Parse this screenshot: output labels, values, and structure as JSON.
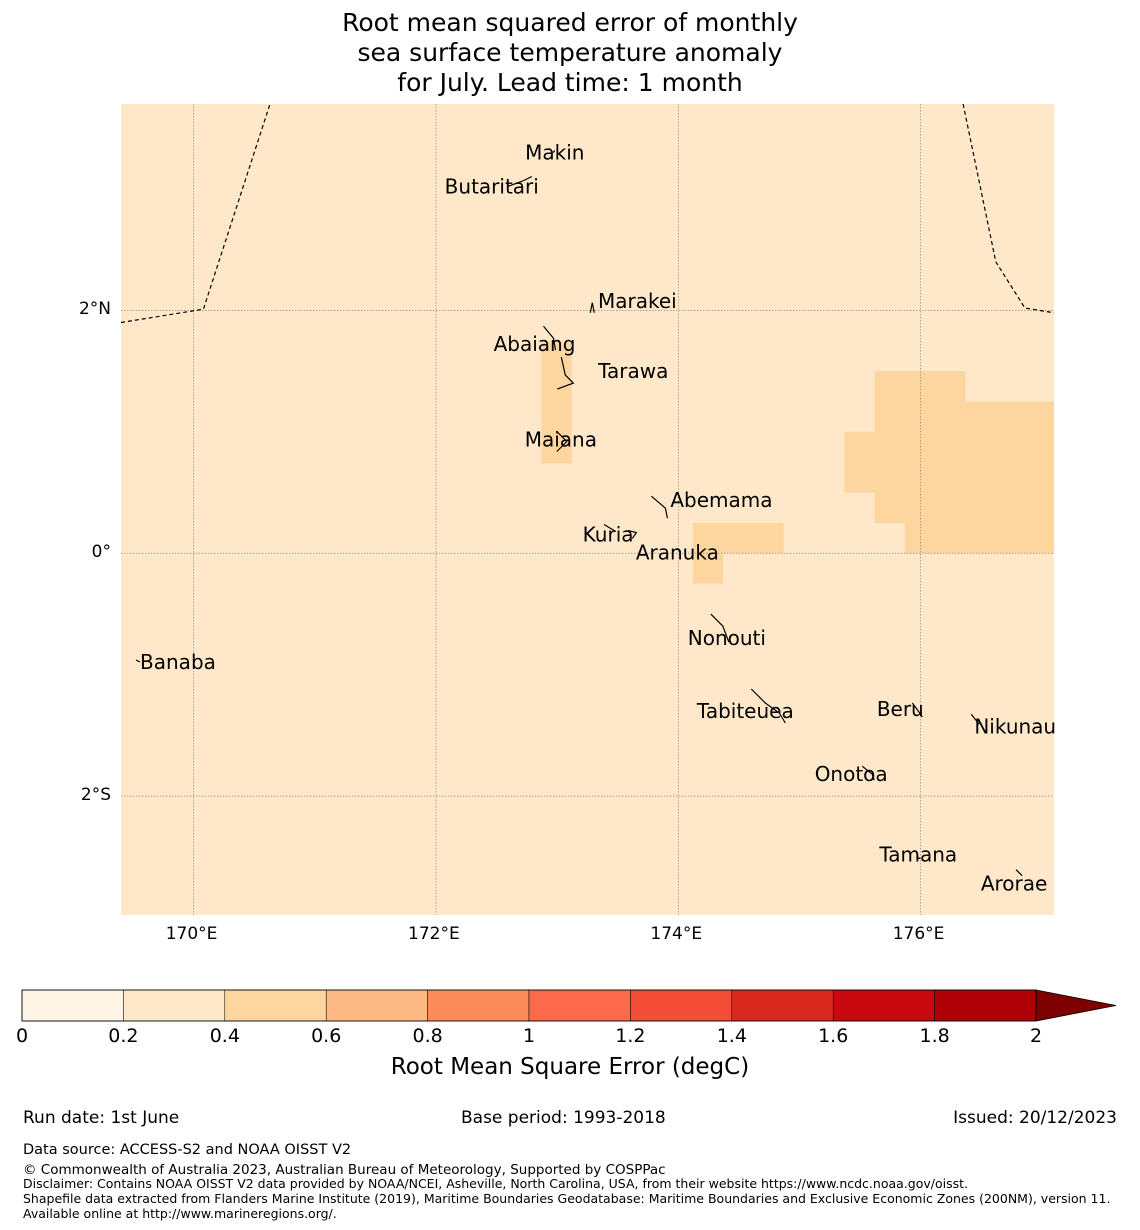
{
  "title": {
    "line1": "Root mean squared error of monthly",
    "line2": "sea surface temperature anomaly",
    "line3": "for July. Lead time: 1 month"
  },
  "map": {
    "lon_range": [
      169.4,
      177.1
    ],
    "lat_range": [
      -2.98,
      3.7
    ],
    "background_color": "#FEE8C9",
    "lat_ticks": [
      {
        "value": 2,
        "label": "2°N"
      },
      {
        "value": 0,
        "label": "0°"
      },
      {
        "value": -2,
        "label": "2°S"
      }
    ],
    "lon_ticks": [
      {
        "value": 170,
        "label": "170°E"
      },
      {
        "value": 172,
        "label": "172°E"
      },
      {
        "value": 174,
        "label": "174°E"
      },
      {
        "value": 176,
        "label": "176°E"
      }
    ],
    "shaded_cells": [
      {
        "lon": [
          172.87,
          173.12
        ],
        "lat": [
          0.74,
          1.74
        ],
        "color": "#FDD59F"
      },
      {
        "lon": [
          174.12,
          174.87
        ],
        "lat": [
          0.0,
          0.25
        ],
        "color": "#FDD59F"
      },
      {
        "lon": [
          174.12,
          174.37
        ],
        "lat": [
          -0.25,
          0.0
        ],
        "color": "#FDD59F"
      },
      {
        "lon": [
          175.62,
          176.37
        ],
        "lat": [
          1.0,
          1.5
        ],
        "color": "#FDD59F"
      },
      {
        "lon": [
          175.37,
          177.1
        ],
        "lat": [
          0.5,
          1.0
        ],
        "color": "#FDD59F"
      },
      {
        "lon": [
          175.62,
          177.1
        ],
        "lat": [
          0.25,
          0.5
        ],
        "color": "#FDD59F"
      },
      {
        "lon": [
          175.87,
          177.1
        ],
        "lat": [
          0.0,
          0.25
        ],
        "color": "#FDD59F"
      },
      {
        "lon": [
          176.37,
          177.1
        ],
        "lat": [
          1.0,
          1.25
        ],
        "color": "#FDD59F"
      }
    ],
    "eez_boundaries": [
      [
        [
          169.4,
          1.9
        ],
        [
          170.08,
          2.01
        ],
        [
          170.63,
          3.7
        ]
      ],
      [
        [
          176.35,
          3.7
        ],
        [
          176.62,
          2.4
        ],
        [
          176.86,
          2.02
        ],
        [
          177.1,
          1.98
        ]
      ]
    ],
    "islands": [
      {
        "name": "Makin",
        "lon": 172.98,
        "lat": 3.3
      },
      {
        "name": "Butaritari",
        "lon": 172.79,
        "lat": 3.07
      },
      {
        "name": "Marakei",
        "lon": 173.29,
        "lat": 2.03
      },
      {
        "name": "Abaiang",
        "lon": 172.92,
        "lat": 1.82
      },
      {
        "name": "Tarawa",
        "lon": 173.05,
        "lat": 1.5
      },
      {
        "name": "Maiana",
        "lon": 173.03,
        "lat": 0.92
      },
      {
        "name": "Abemama",
        "lon": 173.86,
        "lat": 0.42
      },
      {
        "name": "Kuria",
        "lon": 173.42,
        "lat": 0.22
      },
      {
        "name": "Aranuka",
        "lon": 173.62,
        "lat": 0.17
      },
      {
        "name": "Nonouti",
        "lon": 174.4,
        "lat": -0.65
      },
      {
        "name": "Banaba",
        "lon": 169.54,
        "lat": -0.88
      },
      {
        "name": "Tabiteuea",
        "lon": 174.8,
        "lat": -1.3
      },
      {
        "name": "Beru",
        "lon": 175.98,
        "lat": -1.3
      },
      {
        "name": "Nikunau",
        "lon": 176.45,
        "lat": -1.36
      },
      {
        "name": "Onotoa",
        "lon": 175.55,
        "lat": -1.82
      },
      {
        "name": "Tamana",
        "lon": 175.98,
        "lat": -2.5
      },
      {
        "name": "Arorae",
        "lon": 176.82,
        "lat": -2.64
      }
    ]
  },
  "colorbar": {
    "label": "Root Mean Square Error (degC)",
    "ticks": [
      "0",
      "0.2",
      "0.4",
      "0.6",
      "0.8",
      "1",
      "1.2",
      "1.4",
      "1.6",
      "1.8",
      "2"
    ],
    "colors": [
      "#FFF5E6",
      "#FEE8C9",
      "#FDD59F",
      "#FDBA84",
      "#FC8D5A",
      "#FB6A4A",
      "#F44D38",
      "#D9291E",
      "#C8090F",
      "#B00007"
    ],
    "extend_color": "#7F0000"
  },
  "footer": {
    "run_date": "Run date: 1st June",
    "base_period": "Base period: 1993-2018",
    "issued": "Issued: 20/12/2023",
    "data_source": "Data source: ACCESS-S2 and NOAA OISST V2",
    "copyright": "© Commonwealth of Australia 2023, Australian Bureau of Meteorology, Supported by COSPPac",
    "disclaimer": "Disclaimer: Contains NOAA OISST V2 data provided by NOAA/NCEI, Asheville, North Carolina, USA, from their website https://www.ncdc.noaa.gov/oisst.",
    "shapefile": "Shapefile data extracted from Flanders Marine Institute (2019), Maritime Boundaries Geodatabase: Maritime Boundaries and Exclusive Economic Zones (200NM), version 11. Available online at http://www.marineregions.org/."
  }
}
